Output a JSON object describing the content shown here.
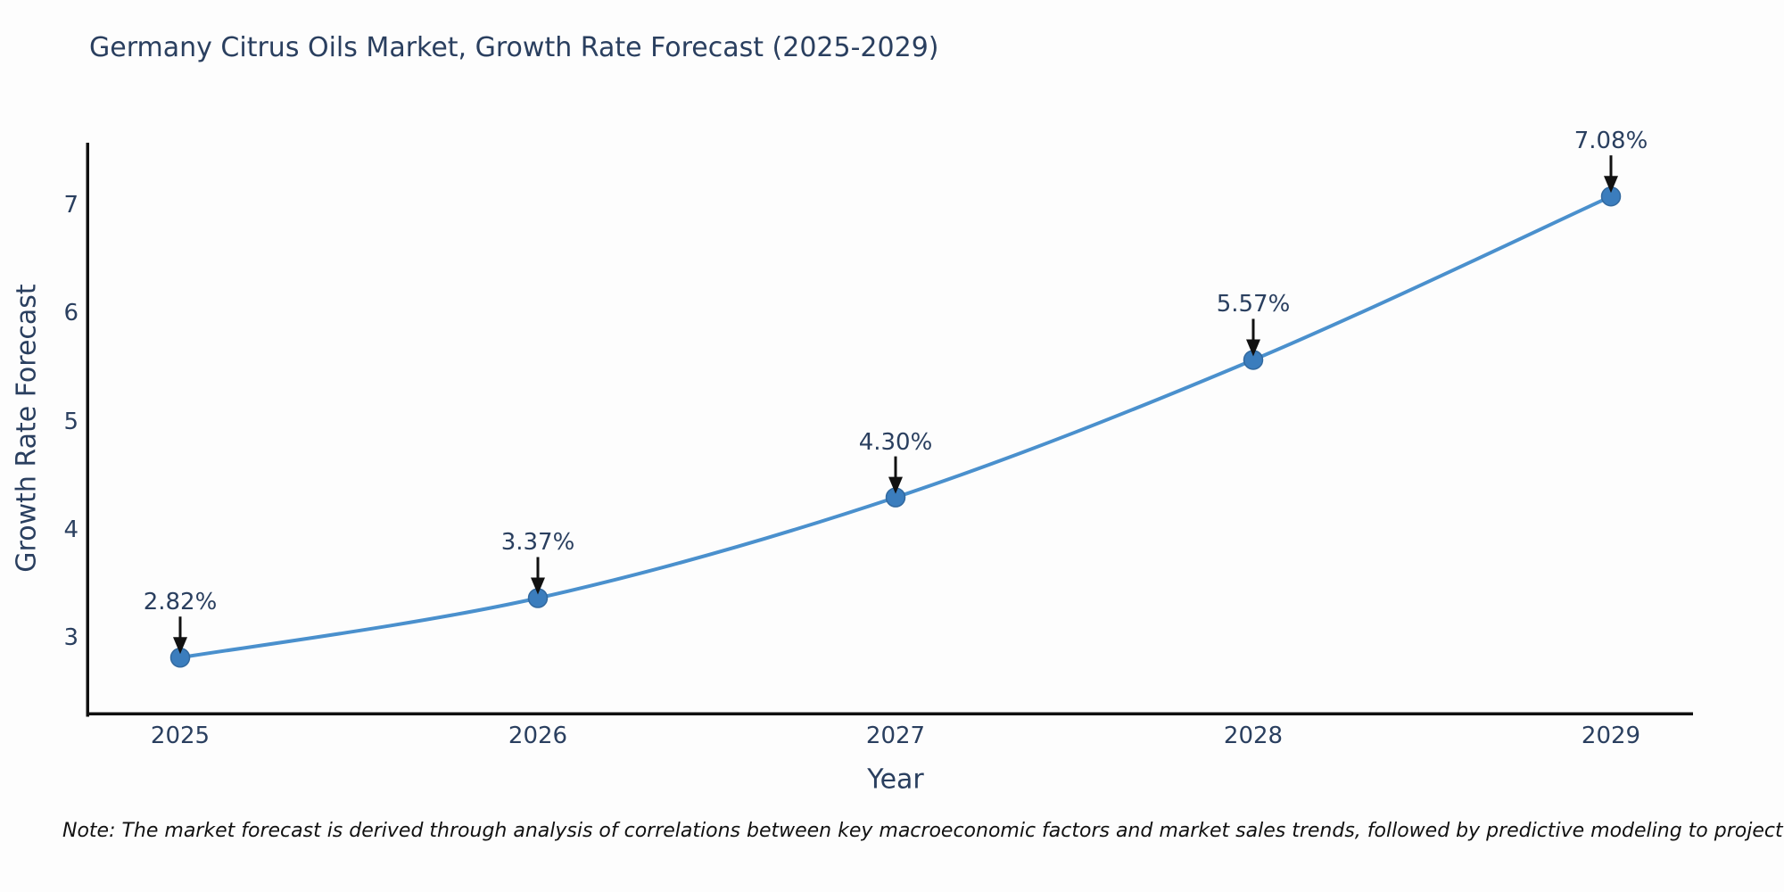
{
  "title": "Germany Citrus Oils Market, Growth Rate Forecast (2025-2029)",
  "note": "Note: The market forecast is derived through analysis of correlations between key macroeconomic factors and market sales trends, followed by predictive modeling to project future sales.",
  "chart_data": {
    "type": "line",
    "title": "Germany Citrus Oils Market, Growth Rate Forecast (2025-2029)",
    "xlabel": "Year",
    "ylabel": "Growth Rate Forecast",
    "x": [
      2025,
      2026,
      2027,
      2028,
      2029
    ],
    "y": [
      2.82,
      3.37,
      4.3,
      5.57,
      7.08
    ],
    "point_labels": [
      "2.82%",
      "3.37%",
      "4.30%",
      "5.57%",
      "7.08%"
    ],
    "xticks": [
      "2025",
      "2026",
      "2027",
      "2028",
      "2029"
    ],
    "yticks": [
      3,
      4,
      5,
      6,
      7
    ],
    "ylim": [
      2.3,
      7.57
    ],
    "line_shape": "spline",
    "grid": false,
    "legend": "none",
    "colors": {
      "line": "#4a90cd",
      "marker": "#3b7dbd",
      "marker_edge": "#32699f",
      "arrow": "#111111",
      "axis": "#111111",
      "text": "#2a3f5f",
      "note": "#111111",
      "background": "#fdfdfd"
    }
  }
}
